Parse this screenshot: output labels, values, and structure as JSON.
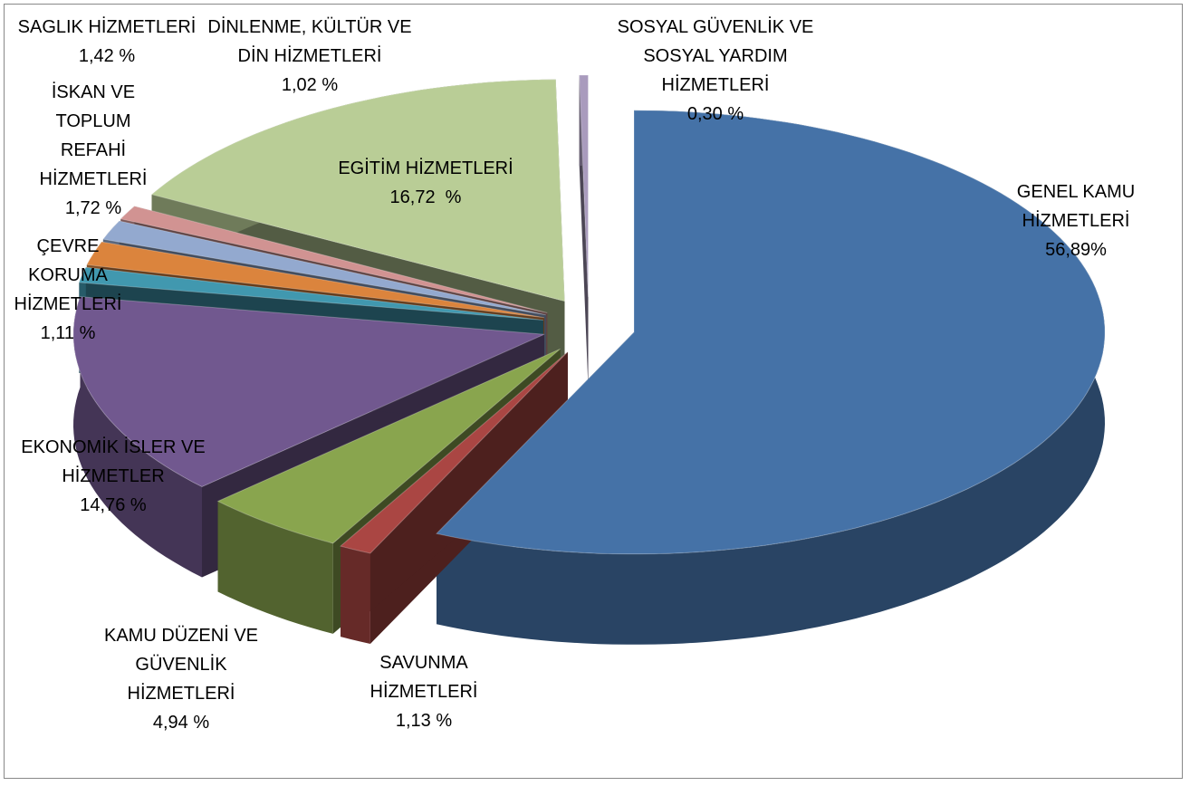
{
  "chart_data": {
    "type": "pie3d",
    "categories": [
      "GENEL KAMU HİZMETLERİ",
      "SAVUNMA HİZMETLERİ",
      "KAMU DÜZENİ VE GÜVENLİK HİZMETLERİ",
      "EKONOMİK İSLER VE HİZMETLER",
      "ÇEVRE KORUMA HİZMETLERİ",
      "İSKAN VE TOPLUM REFAHİ HİZMETLERİ",
      "SAGLIK HİZMETLERİ",
      "DİNLENME, KÜLTÜR VE DİN HİZMETLERİ",
      "EGİTİM HİZMETLERİ",
      "SOSYAL GÜVENLİK VE SOSYAL YARDIM HİZMETLERİ"
    ],
    "values": [
      56.89,
      1.13,
      4.94,
      14.76,
      1.11,
      1.72,
      1.42,
      1.02,
      16.72,
      0.3
    ],
    "value_labels": [
      "56,89%",
      "1,13 %",
      "4,94 %",
      "14,76 %",
      "1,11 %",
      "1,72 %",
      "1,42 %",
      "1,02 %",
      "16,72  %",
      "0,30 %"
    ],
    "colors": [
      "#4572a7",
      "#aa4643",
      "#89a54e",
      "#71588f",
      "#4198af",
      "#db843d",
      "#93a9cf",
      "#d19392",
      "#b9cd96",
      "#a99bbd"
    ]
  }
}
